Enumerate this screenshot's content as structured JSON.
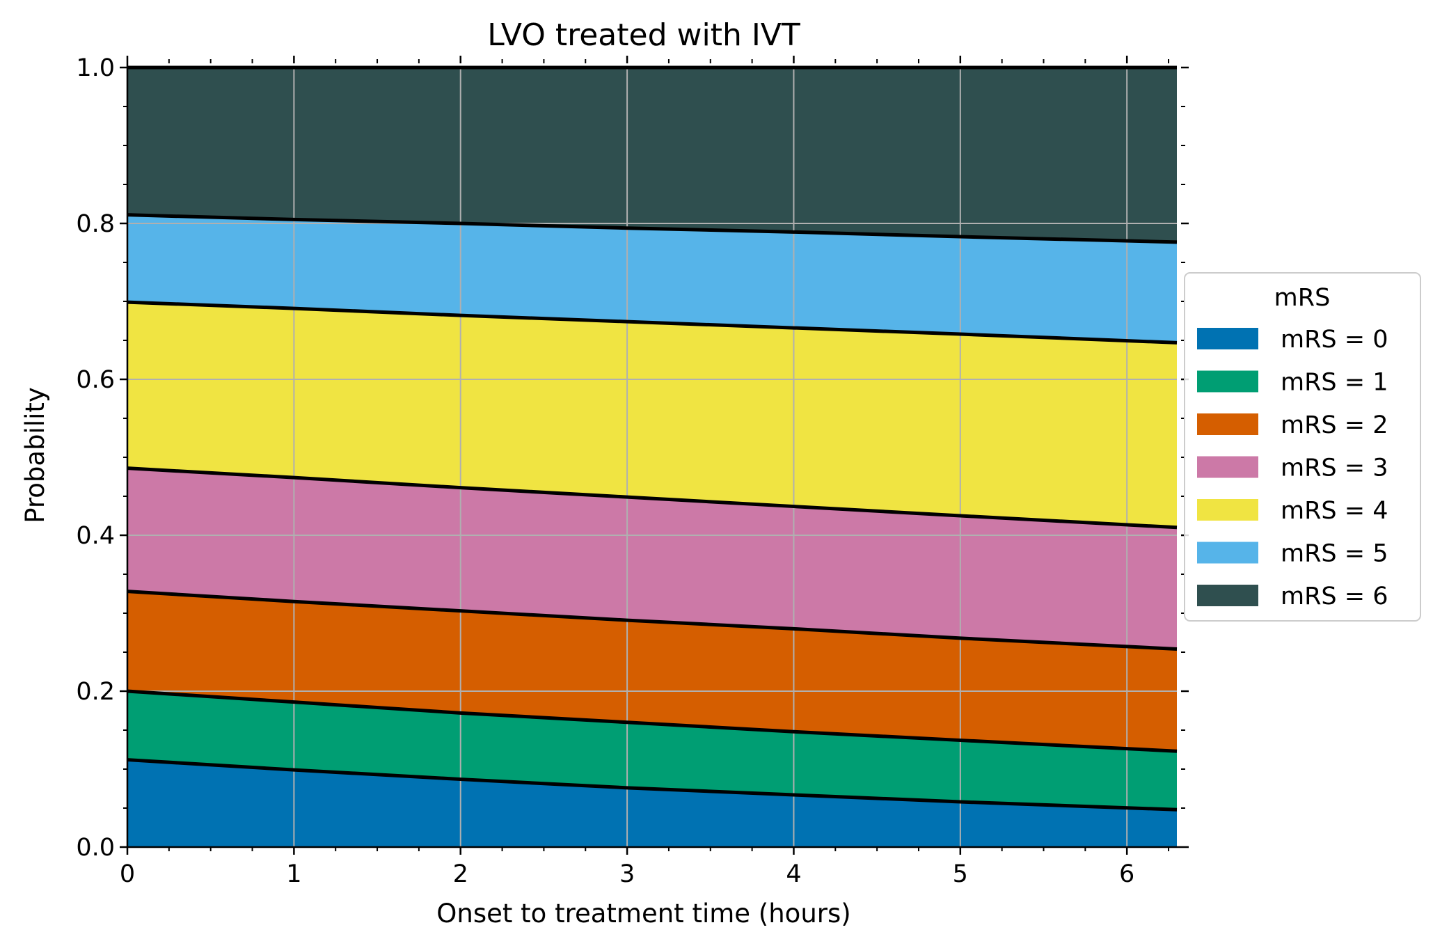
{
  "chart_data": {
    "type": "area",
    "title": "LVO treated with IVT",
    "xlabel": "Onset to treatment time (hours)",
    "ylabel": "Probability",
    "xlim": [
      0,
      6.3
    ],
    "ylim": [
      0,
      1.0
    ],
    "x_ticks": [
      0,
      1,
      2,
      3,
      4,
      5,
      6
    ],
    "x_tick_labels": [
      "0",
      "1",
      "2",
      "3",
      "4",
      "5",
      "6"
    ],
    "y_ticks": [
      0.0,
      0.2,
      0.4,
      0.6,
      0.8,
      1.0
    ],
    "y_tick_labels": [
      "0.0",
      "0.2",
      "0.4",
      "0.6",
      "0.8",
      "1.0"
    ],
    "grid": true,
    "stacked": true,
    "legend": {
      "title": "mRS",
      "placement": "right, outside plot"
    },
    "x": [
      0,
      1,
      2,
      3,
      4,
      5,
      6.3
    ],
    "cumulative_boundaries": [
      {
        "upper_of": "mRS = 0",
        "values": [
          0.112,
          0.099,
          0.087,
          0.076,
          0.067,
          0.058,
          0.048
        ]
      },
      {
        "upper_of": "mRS = 1",
        "values": [
          0.2,
          0.186,
          0.172,
          0.16,
          0.148,
          0.137,
          0.123
        ]
      },
      {
        "upper_of": "mRS = 2",
        "values": [
          0.328,
          0.315,
          0.303,
          0.291,
          0.28,
          0.268,
          0.254
        ]
      },
      {
        "upper_of": "mRS = 3",
        "values": [
          0.486,
          0.474,
          0.461,
          0.449,
          0.437,
          0.425,
          0.41
        ]
      },
      {
        "upper_of": "mRS = 4",
        "values": [
          0.699,
          0.691,
          0.682,
          0.674,
          0.666,
          0.658,
          0.647
        ]
      },
      {
        "upper_of": "mRS = 5",
        "values": [
          0.811,
          0.805,
          0.8,
          0.794,
          0.789,
          0.783,
          0.776
        ]
      },
      {
        "upper_of": "mRS = 6",
        "values": [
          1.0,
          1.0,
          1.0,
          1.0,
          1.0,
          1.0,
          1.0
        ]
      }
    ],
    "series": [
      {
        "name": "mRS = 0",
        "color": "#0072B2",
        "values": [
          0.112,
          0.099,
          0.087,
          0.076,
          0.067,
          0.058,
          0.048
        ]
      },
      {
        "name": "mRS = 1",
        "color": "#009E73",
        "values": [
          0.088,
          0.087,
          0.085,
          0.084,
          0.081,
          0.079,
          0.075
        ]
      },
      {
        "name": "mRS = 2",
        "color": "#D55E00",
        "values": [
          0.128,
          0.129,
          0.131,
          0.131,
          0.132,
          0.131,
          0.131
        ]
      },
      {
        "name": "mRS = 3",
        "color": "#CC79A7",
        "values": [
          0.158,
          0.159,
          0.158,
          0.158,
          0.157,
          0.157,
          0.156
        ]
      },
      {
        "name": "mRS = 4",
        "color": "#F0E442",
        "values": [
          0.213,
          0.217,
          0.221,
          0.225,
          0.229,
          0.233,
          0.237
        ]
      },
      {
        "name": "mRS = 5",
        "color": "#56B4E9",
        "values": [
          0.112,
          0.114,
          0.118,
          0.12,
          0.123,
          0.125,
          0.129
        ]
      },
      {
        "name": "mRS = 6",
        "color": "#2F4F4F",
        "values": [
          0.189,
          0.195,
          0.2,
          0.206,
          0.211,
          0.217,
          0.224
        ]
      }
    ],
    "grid_color": "#b0b0b0",
    "boundary_line_color": "#000000"
  }
}
